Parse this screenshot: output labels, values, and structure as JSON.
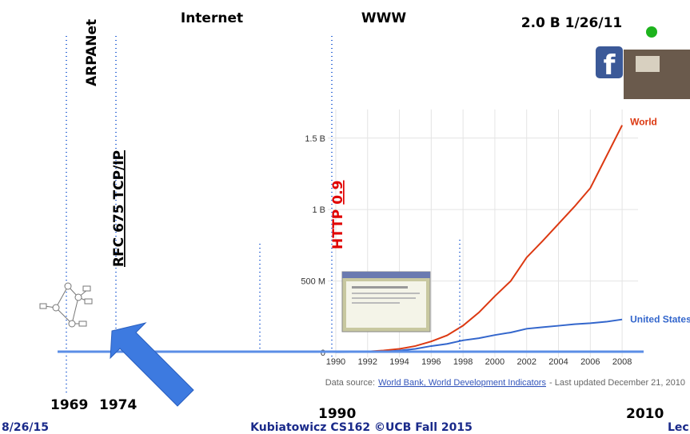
{
  "slide": {
    "arpanet": "ARPANet",
    "internet": "Internet",
    "www": "WWW",
    "facebook_users": "2.0 B 1/26/11",
    "rfc": "RFC 675 TCP/IP",
    "http_label": "HTTP",
    "http_version": "0.9",
    "year_1969": "1969",
    "year_1974": "1974",
    "year_1990": "1990",
    "year_2010": "2010",
    "date": "8/26/15",
    "course": "Kubiatowicz CS162 ©UCB Fall 2015",
    "lec": "Lec"
  },
  "chart_data": {
    "type": "line",
    "x": [
      1990,
      1991,
      1992,
      1993,
      1994,
      1995,
      1996,
      1997,
      1998,
      1999,
      2000,
      2001,
      2002,
      2003,
      2004,
      2005,
      2006,
      2007,
      2008
    ],
    "series": [
      {
        "name": "World",
        "color": "#dc3912",
        "values": [
          2.6,
          4.4,
          7,
          14,
          25,
          45,
          77,
          120,
          188,
          280,
          394,
          500,
          665,
          780,
          900,
          1020,
          1150,
          1370,
          1590
        ]
      },
      {
        "name": "United States",
        "color": "#3366cc",
        "values": [
          2,
          3,
          4.5,
          6.5,
          13,
          25,
          45,
          60,
          85,
          100,
          122,
          140,
          166,
          177,
          187,
          198,
          205,
          215,
          231
        ]
      }
    ],
    "xlim": [
      1989.5,
      2009
    ],
    "xticks": [
      1990,
      1992,
      1994,
      1996,
      1998,
      2000,
      2002,
      2004,
      2006,
      2008
    ],
    "ylim": [
      0,
      1700
    ],
    "yticks": [
      0,
      {
        "value": 500,
        "label": "500 M"
      },
      {
        "value": 1000,
        "label": "1 B"
      },
      {
        "value": 1500,
        "label": "1.5 B"
      }
    ],
    "grid": true,
    "source_prefix": "Data source:",
    "source_link": "World Bank, World Development Indicators",
    "source_suffix": "- Last updated December 21, 2010"
  }
}
